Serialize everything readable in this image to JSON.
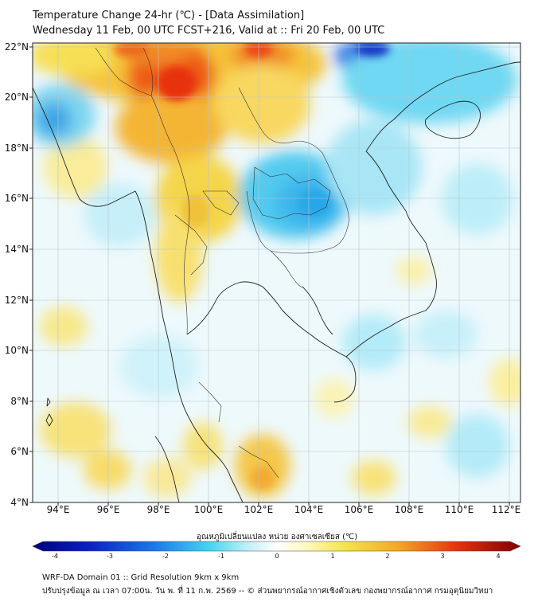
{
  "header": {
    "title": "Temperature Change 24-hr (℃) - [Data Assimilation]",
    "subtitle": "Wednesday 11 Feb, 00 UTC FCST+216, Valid at :: Fri 20 Feb, 00 UTC"
  },
  "map": {
    "region": "Mainland Southeast Asia",
    "lon_ticks": [
      "94°E",
      "96°E",
      "98°E",
      "100°E",
      "102°E",
      "104°E",
      "106°E",
      "108°E",
      "110°E",
      "112°E"
    ],
    "lat_ticks": [
      "22°N",
      "20°N",
      "18°N",
      "16°N",
      "14°N",
      "12°N",
      "10°N",
      "8°N",
      "6°N",
      "4°N"
    ],
    "lon_range": [
      93,
      112.5
    ],
    "lat_range": [
      4,
      22.3
    ]
  },
  "colorbar": {
    "label": "อุณหภูมิเปลี่ยนแปลง หน่วย องศาเซลเซียส (℃)",
    "ticks": [
      "-4",
      "-3",
      "-2",
      "-1",
      "0",
      "1",
      "2",
      "3",
      "4"
    ],
    "range": [
      -4,
      4
    ]
  },
  "footer": {
    "line1": "WRF-DA Domain 01 :: Grid Resolution 9km x 9km",
    "line2": "ปรับปรุงข้อมูล ณ เวลา 07:00น. วัน พ. ที่ 11 ก.พ. 2569 -- © ส่วนพยากรณ์อากาศเชิงตัวเลข กองพยากรณ์อากาศ กรมอุตุนิยมวิทยา"
  },
  "colors": {
    "cold_max": "#00007f",
    "cold": "#1f5fe0",
    "cool": "#3fd3f0",
    "neutral": "#ffffff",
    "warm": "#f6e440",
    "hot": "#f07818",
    "hot_max": "#7f0000"
  }
}
